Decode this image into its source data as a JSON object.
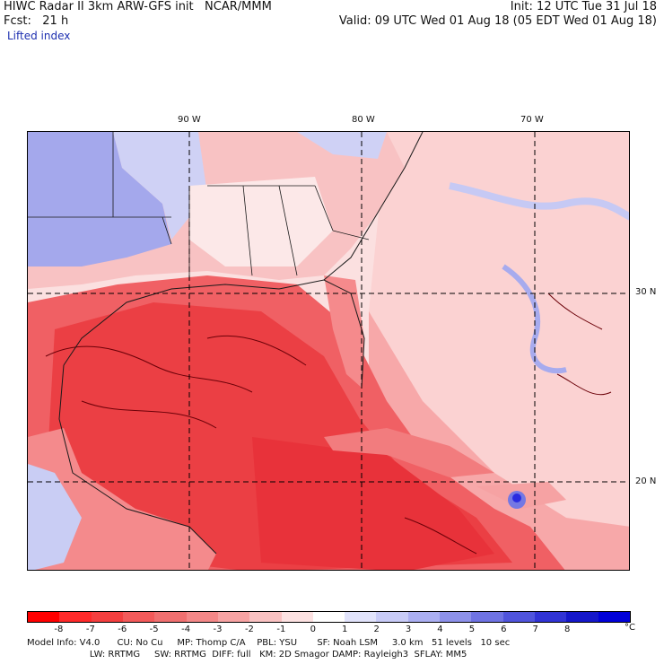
{
  "header": {
    "line1_left": "HIWC Radar II 3km ARW-GFS init   NCAR/MMM",
    "line1_right": "Init: 12 UTC Tue 31 Jul 18",
    "line2_left": "Fcst:   21 h",
    "line2_right": "Valid: 09 UTC Wed 01 Aug 18 (05 EDT Wed 01 Aug 18)",
    "field": "Lifted index"
  },
  "map": {
    "lon_labels": [
      "90 W",
      "80 W",
      "70 W"
    ],
    "lat_labels": [
      "30 N",
      "20 N"
    ],
    "colors": {
      "deep_red": "#e8333a",
      "red": "#f05a5e",
      "mid_red": "#f58a8c",
      "light_red": "#f9bfc0",
      "pale_red": "#fbe0e0",
      "light_blue": "#c6c9f4",
      "mid_blue": "#9ea3ec",
      "deep_blue": "#3838e6",
      "contour": "#6b0008",
      "coast": "#1a1a1a"
    }
  },
  "colorbar": {
    "ticks": [
      "-8",
      "-7",
      "-6",
      "-5",
      "-4",
      "-3",
      "-2",
      "-1",
      "0",
      "1",
      "2",
      "3",
      "4",
      "5",
      "6",
      "7",
      "8"
    ],
    "unit": "°C",
    "colors": [
      "#ff0000",
      "#ff2a2a",
      "#f43f3f",
      "#f35a5a",
      "#f07070",
      "#f48888",
      "#f7a3a3",
      "#fac2c2",
      "#fde2e2",
      "#ffffff",
      "#e1e3fb",
      "#c8cbf7",
      "#abaff2",
      "#8d91ea",
      "#6f73e3",
      "#5054dc",
      "#3133d5",
      "#1517ca",
      "#0000d8"
    ]
  },
  "footer": {
    "line1": "Model Info: V4.0      CU: No Cu     MP: Thomp C/A    PBL: YSU       SF: Noah LSM     3.0 km   51 levels   10 sec",
    "line2": "                      LW: RRTMG     SW: RRTMG  DIFF: full   KM: 2D Smagor DAMP: Rayleigh3  SFLAY: MM5"
  }
}
